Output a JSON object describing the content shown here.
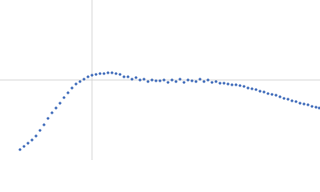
{
  "chart_data": {
    "type": "scatter",
    "color": "#3a67b8",
    "xlim": [
      -115,
      285
    ],
    "ylim": [
      -100,
      100
    ],
    "x": [
      -90,
      -85,
      -80,
      -75,
      -70,
      -65,
      -60,
      -55,
      -50,
      -45,
      -40,
      -35,
      -30,
      -25,
      -20,
      -15,
      -10,
      -5,
      0,
      5,
      10,
      15,
      20,
      25,
      30,
      35,
      40,
      45,
      50,
      55,
      60,
      65,
      70,
      75,
      80,
      85,
      90,
      95,
      100,
      105,
      110,
      115,
      120,
      125,
      130,
      135,
      140,
      145,
      150,
      155,
      160,
      165,
      170,
      175,
      180,
      185,
      190,
      195,
      200,
      205,
      210,
      215,
      220,
      225,
      230,
      235,
      240,
      245,
      250,
      255,
      260,
      265,
      270,
      275,
      280,
      284
    ],
    "values": [
      -87,
      -83,
      -79,
      -75,
      -70,
      -63,
      -56,
      -48,
      -41,
      -35,
      -29,
      -22,
      -16,
      -10,
      -5,
      -2,
      1,
      4,
      6,
      7,
      8,
      8,
      9,
      9,
      8,
      7,
      4,
      4,
      1,
      3,
      0,
      1,
      -2,
      0,
      -1,
      -1,
      0,
      -3,
      0,
      -2,
      1,
      -3,
      0,
      -1,
      -2,
      1,
      -2,
      0,
      -3,
      -2,
      -4,
      -4,
      -5,
      -6,
      -6,
      -7,
      -8,
      -10,
      -11,
      -12,
      -14,
      -15,
      -17,
      -18,
      -19,
      -21,
      -23,
      -24,
      -26,
      -27,
      -29,
      -30,
      -31,
      -33,
      -34,
      -35
    ]
  }
}
